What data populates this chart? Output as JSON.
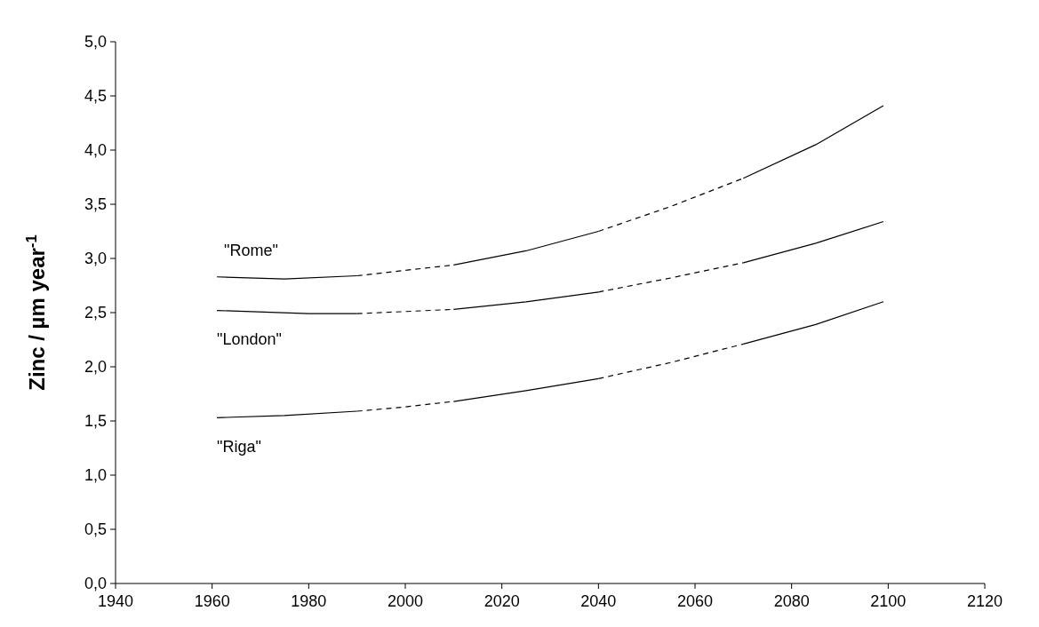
{
  "chart_data": {
    "type": "line",
    "ylabel": "Zinc / µm year$^{-1}$",
    "xlim": [
      1940,
      2120
    ],
    "xticks": [
      1940,
      1960,
      1980,
      2000,
      2020,
      2040,
      2060,
      2080,
      2100,
      2120
    ],
    "ylim": [
      0,
      5
    ],
    "yticks": [
      {
        "value": 0,
        "label": "0,0"
      },
      {
        "value": 0.5,
        "label": "0,5"
      },
      {
        "value": 1,
        "label": "1,0"
      },
      {
        "value": 1.5,
        "label": "1,5"
      },
      {
        "value": 2,
        "label": "2,0"
      },
      {
        "value": 2.5,
        "label": "2,5"
      },
      {
        "value": 3,
        "label": "3,0"
      },
      {
        "value": 3.5,
        "label": "3,5"
      },
      {
        "value": 4,
        "label": "4,0"
      },
      {
        "value": 4.5,
        "label": "4,5"
      },
      {
        "value": 5,
        "label": "5,0"
      }
    ],
    "series": [
      {
        "color": "#000000",
        "line_style": "solid",
        "x": [
          1961,
          1975,
          1990
        ],
        "values": [
          2.83,
          2.81,
          2.84
        ]
      },
      {
        "color": "#000000",
        "line_style": "dashed",
        "x": [
          1990,
          2000,
          2010
        ],
        "values": [
          2.84,
          2.89,
          2.94
        ]
      },
      {
        "color": "#000000",
        "line_style": "solid",
        "x": [
          2010,
          2025,
          2040
        ],
        "values": [
          2.94,
          3.07,
          3.25
        ]
      },
      {
        "color": "#000000",
        "line_style": "dashed",
        "x": [
          2040,
          2055,
          2070
        ],
        "values": [
          3.25,
          3.48,
          3.74
        ]
      },
      {
        "color": "#000000",
        "line_style": "solid",
        "x": [
          2070,
          2085,
          2099
        ],
        "values": [
          3.74,
          4.05,
          4.41
        ]
      },
      {
        "color": "#000000",
        "line_style": "solid",
        "x": [
          1961,
          1980,
          1990
        ],
        "values": [
          2.52,
          2.49,
          2.49
        ]
      },
      {
        "color": "#000000",
        "line_style": "dashed",
        "x": [
          1990,
          2000,
          2010
        ],
        "values": [
          2.49,
          2.51,
          2.53
        ]
      },
      {
        "color": "#000000",
        "line_style": "solid",
        "x": [
          2010,
          2025,
          2040
        ],
        "values": [
          2.53,
          2.6,
          2.69
        ]
      },
      {
        "color": "#000000",
        "line_style": "dashed",
        "x": [
          2040,
          2055,
          2070
        ],
        "values": [
          2.69,
          2.82,
          2.96
        ]
      },
      {
        "color": "#000000",
        "line_style": "solid",
        "x": [
          2070,
          2085,
          2099
        ],
        "values": [
          2.96,
          3.14,
          3.34
        ]
      },
      {
        "color": "#000000",
        "line_style": "solid",
        "x": [
          1961,
          1975,
          1990
        ],
        "values": [
          1.53,
          1.55,
          1.59
        ]
      },
      {
        "color": "#000000",
        "line_style": "dashed",
        "x": [
          1990,
          2000,
          2010
        ],
        "values": [
          1.59,
          1.63,
          1.68
        ]
      },
      {
        "color": "#000000",
        "line_style": "solid",
        "x": [
          2010,
          2025,
          2040
        ],
        "values": [
          1.68,
          1.78,
          1.89
        ]
      },
      {
        "color": "#000000",
        "line_style": "dashed",
        "x": [
          2040,
          2055,
          2070
        ],
        "values": [
          1.89,
          2.04,
          2.21
        ]
      },
      {
        "color": "#000000",
        "line_style": "solid",
        "x": [
          2070,
          2085,
          2099
        ],
        "values": [
          2.21,
          2.39,
          2.6
        ]
      }
    ],
    "annotations": [
      "\"Rome\"",
      "\"London\"",
      "\"Riga\""
    ]
  }
}
